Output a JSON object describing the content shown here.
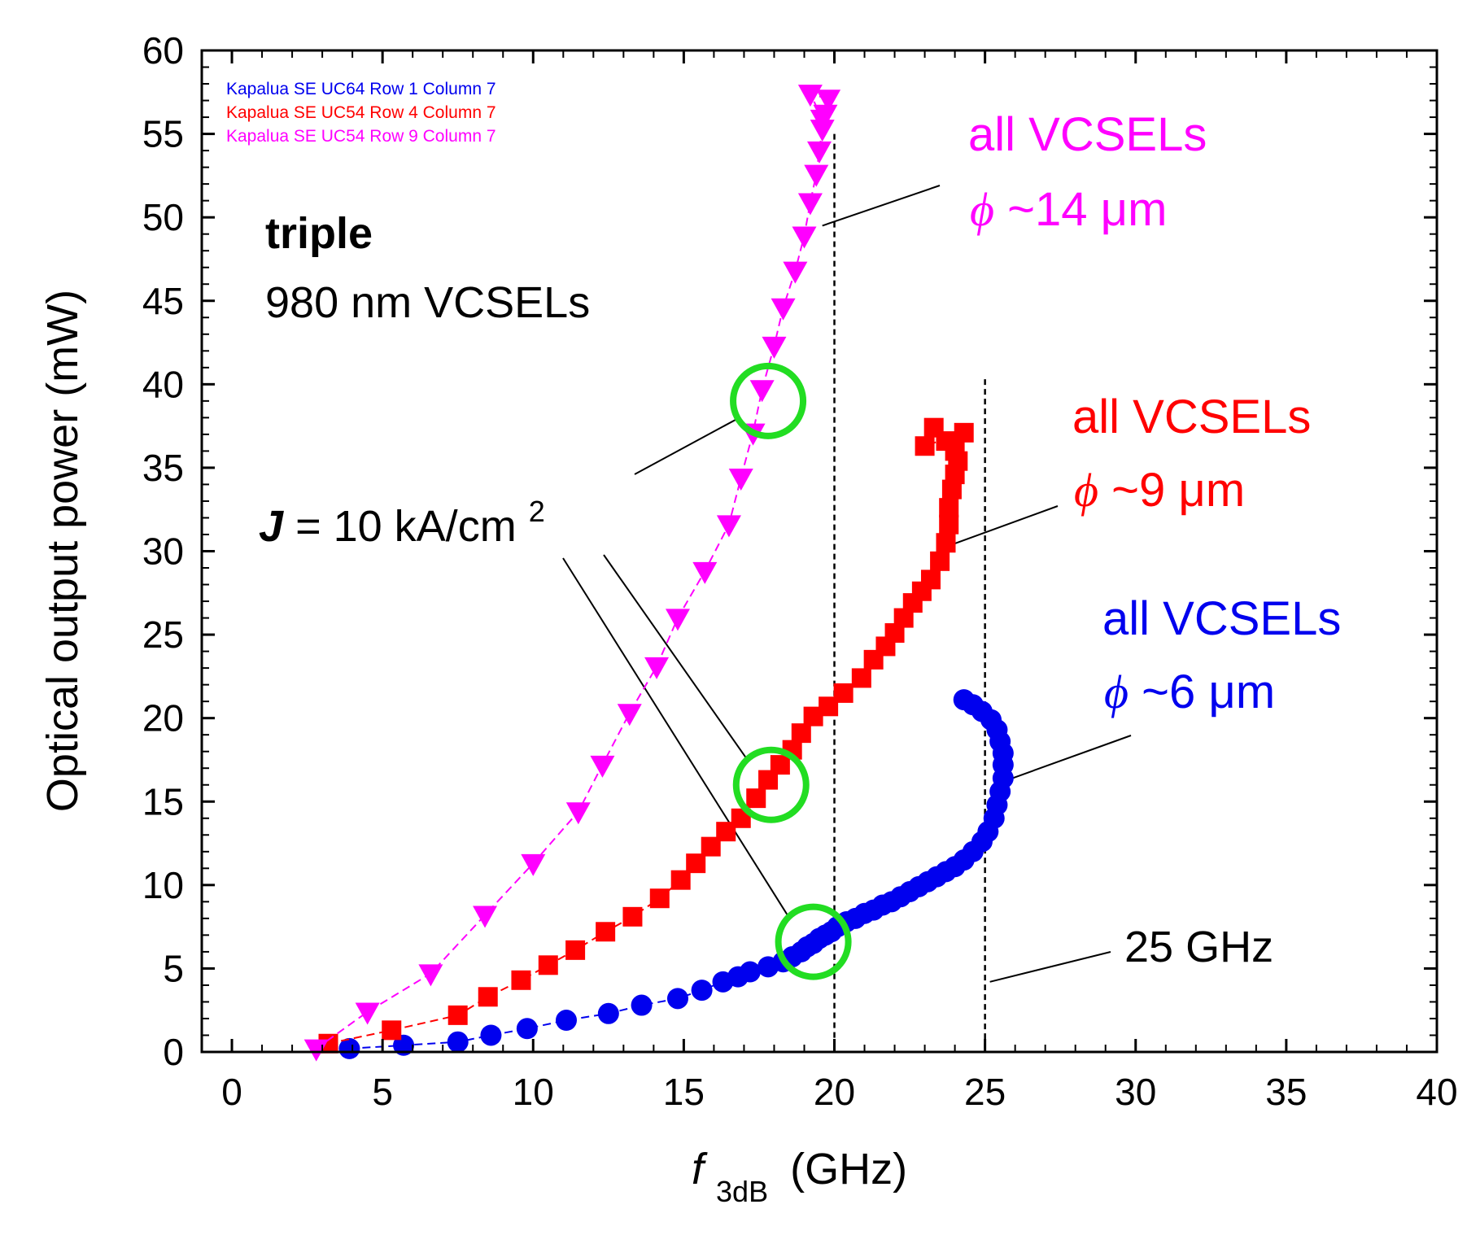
{
  "chart_data": {
    "type": "scatter",
    "xlabel": {
      "main": "f",
      "sub": "3dB",
      "unit": "(GHz)"
    },
    "ylabel": "Optical output power (mW)",
    "xlim": [
      -1,
      40
    ],
    "ylim": [
      0,
      60
    ],
    "xticks": [
      "0",
      "5",
      "10",
      "15",
      "20",
      "25",
      "30",
      "35",
      "40"
    ],
    "yticks": [
      "0",
      "5",
      "10",
      "15",
      "20",
      "25",
      "30",
      "35",
      "40",
      "45",
      "50",
      "55",
      "60"
    ],
    "legend": {
      "position": "top-left",
      "entries": [
        "Kapalua SE UC64 Row 1 Column 7",
        "Kapalua SE UC54 Row 4 Column 7",
        "Kapalua SE UC54 Row 9 Column 7"
      ]
    },
    "title_bold": "triple",
    "title_line2": "980 nm VCSELs",
    "current_density": {
      "symbol": "J",
      "text": " = 10 kA/cm",
      "superscript": "2"
    },
    "marker_label_25": "25 GHz",
    "vlines": [
      20,
      25
    ],
    "series": [
      {
        "name": "Kapalua SE UC64 Row 1 Column 7",
        "color": "#0000ee",
        "marker": "circle",
        "label_line1": "all VCSELs",
        "label_phi": "ϕ",
        "label_line2": " ~6 μm",
        "x": [
          3.9,
          5.7,
          7.5,
          8.6,
          9.8,
          11.1,
          12.5,
          13.6,
          14.8,
          15.6,
          16.3,
          16.8,
          17.2,
          17.8,
          18.3,
          18.6,
          18.9,
          19.1,
          19.3,
          19.5,
          19.7,
          19.9,
          20.1,
          20.4,
          20.7,
          21.0,
          21.3,
          21.6,
          21.9,
          22.2,
          22.5,
          22.8,
          23.1,
          23.4,
          23.7,
          24.0,
          24.3,
          24.6,
          24.9,
          25.1,
          25.3,
          25.4,
          25.5,
          25.6,
          25.6,
          25.6,
          25.5,
          25.4,
          25.2,
          24.9,
          24.6,
          24.3
        ],
        "y": [
          0.2,
          0.4,
          0.6,
          1.0,
          1.4,
          1.9,
          2.3,
          2.8,
          3.2,
          3.7,
          4.2,
          4.5,
          4.8,
          5.1,
          5.4,
          5.7,
          6.0,
          6.3,
          6.5,
          6.8,
          7.0,
          7.2,
          7.5,
          7.8,
          8.0,
          8.3,
          8.5,
          8.8,
          9.0,
          9.3,
          9.6,
          9.9,
          10.2,
          10.5,
          10.8,
          11.1,
          11.5,
          12.0,
          12.6,
          13.2,
          14.0,
          14.8,
          15.6,
          16.4,
          17.2,
          17.9,
          18.6,
          19.3,
          19.9,
          20.4,
          20.8,
          21.1
        ]
      },
      {
        "name": "Kapalua SE UC54 Row 4 Column 7",
        "color": "#ff0000",
        "marker": "square",
        "label_line1": "all VCSELs",
        "label_phi": "ϕ",
        "label_line2": " ~9 μm",
        "x": [
          3.2,
          5.3,
          7.5,
          8.5,
          9.6,
          10.5,
          11.4,
          12.4,
          13.3,
          14.2,
          14.9,
          15.4,
          15.9,
          16.4,
          16.9,
          17.4,
          17.8,
          18.2,
          18.6,
          18.9,
          19.3,
          19.8,
          20.3,
          20.9,
          21.3,
          21.7,
          22.0,
          22.3,
          22.6,
          22.9,
          23.2,
          23.5,
          23.7,
          23.8,
          23.8,
          23.9,
          24.0,
          24.1,
          24.0,
          23.7,
          23.3,
          23.0,
          24.3
        ],
        "y": [
          0.5,
          1.3,
          2.2,
          3.3,
          4.3,
          5.2,
          6.1,
          7.2,
          8.1,
          9.2,
          10.3,
          11.3,
          12.3,
          13.2,
          14.0,
          15.2,
          16.3,
          17.2,
          18.1,
          19.1,
          20.1,
          20.7,
          21.5,
          22.4,
          23.5,
          24.3,
          25.1,
          26.0,
          26.9,
          27.6,
          28.3,
          29.4,
          30.5,
          31.6,
          32.6,
          33.7,
          34.6,
          35.4,
          36.0,
          36.6,
          37.4,
          36.3,
          37.1
        ]
      },
      {
        "name": "Kapalua SE UC54 Row 9 Column 7",
        "color": "#ff00ff",
        "marker": "triangle-down",
        "label_line1": "all VCSELs",
        "label_phi": "ϕ",
        "label_line2": " ~14 μm",
        "x": [
          2.8,
          4.5,
          6.6,
          8.4,
          10.0,
          11.5,
          12.3,
          13.2,
          14.1,
          14.8,
          15.7,
          16.5,
          16.9,
          17.3,
          17.6,
          18.0,
          18.3,
          18.7,
          19.0,
          19.2,
          19.4,
          19.5,
          19.6,
          19.7,
          19.8,
          19.2,
          19.6
        ],
        "y": [
          0.2,
          2.4,
          4.7,
          8.2,
          11.3,
          14.4,
          17.2,
          20.3,
          23.1,
          26.0,
          28.8,
          31.6,
          34.4,
          37.1,
          39.7,
          42.3,
          44.6,
          46.8,
          48.9,
          50.9,
          52.6,
          54.0,
          55.3,
          56.2,
          57.1,
          57.4,
          55.9
        ]
      }
    ],
    "highlight_circles": [
      {
        "x": 17.8,
        "y": 39.0
      },
      {
        "x": 17.9,
        "y": 16.0
      },
      {
        "x": 19.3,
        "y": 6.6
      }
    ]
  }
}
